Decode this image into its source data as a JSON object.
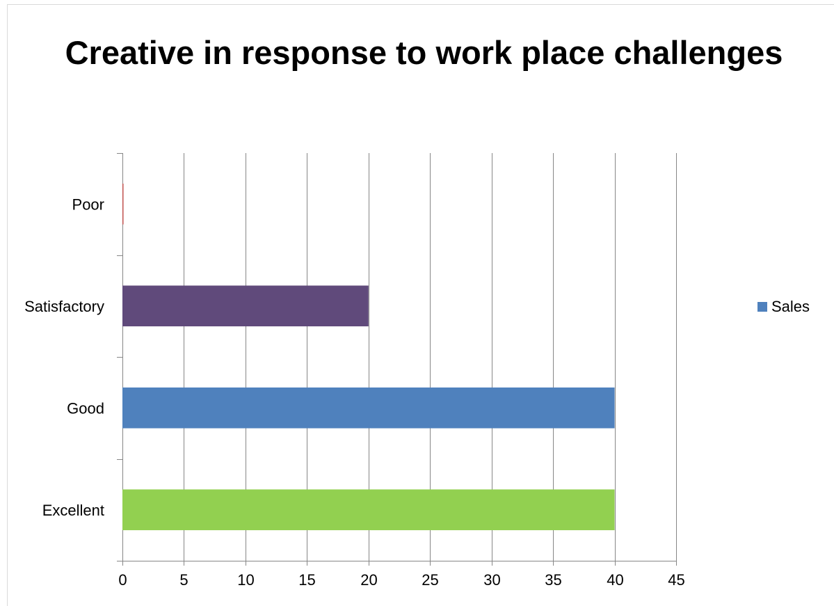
{
  "chart_data": {
    "type": "bar",
    "orientation": "horizontal",
    "title": "Creative in response to work place challenges",
    "categories": [
      "Poor",
      "Satisfactory",
      "Good",
      "Excellent"
    ],
    "series": [
      {
        "name": "Sales",
        "values": [
          0,
          20,
          40,
          40
        ]
      }
    ],
    "bar_colors": [
      "#C0504D",
      "#604A7B",
      "#4F81BD",
      "#92D050"
    ],
    "series_color": "#4F81BD",
    "xlim": [
      0,
      45
    ],
    "x_ticks": [
      "0",
      "5",
      "10",
      "15",
      "20",
      "25",
      "30",
      "35",
      "40",
      "45"
    ],
    "xlabel": "",
    "ylabel": "",
    "grid": "vertical",
    "legend_position": "right"
  }
}
